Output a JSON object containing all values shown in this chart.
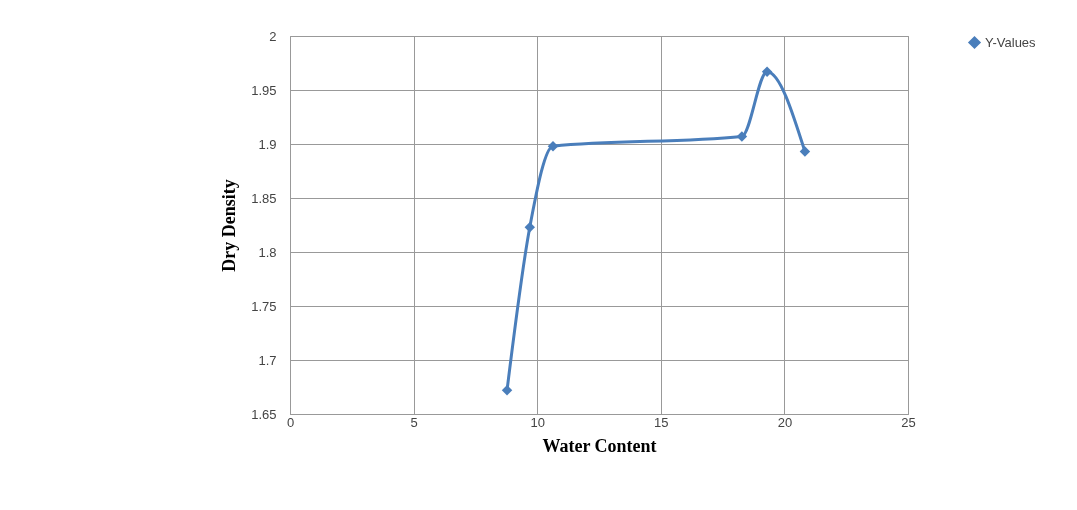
{
  "chart_data": {
    "type": "line",
    "xlabel": "Water Content",
    "ylabel": "Dry Density",
    "x": [
      8.78,
      9.7,
      10.64,
      18.28,
      19.3,
      20.83
    ],
    "series": [
      {
        "name": "Y-Values",
        "color": "#4a7ebb",
        "values": [
          1.672,
          1.823,
          1.898,
          1.907,
          1.967,
          1.893
        ]
      }
    ],
    "xlim": [
      0,
      25
    ],
    "xticks": [
      0,
      5,
      10,
      15,
      20,
      25
    ],
    "ylim": [
      1.65,
      2
    ],
    "yticks": [
      1.65,
      1.7,
      1.75,
      1.8,
      1.85,
      1.9,
      1.95,
      2
    ],
    "grid": true,
    "legend": "right",
    "marker": "diamond",
    "line_style": "solid"
  }
}
